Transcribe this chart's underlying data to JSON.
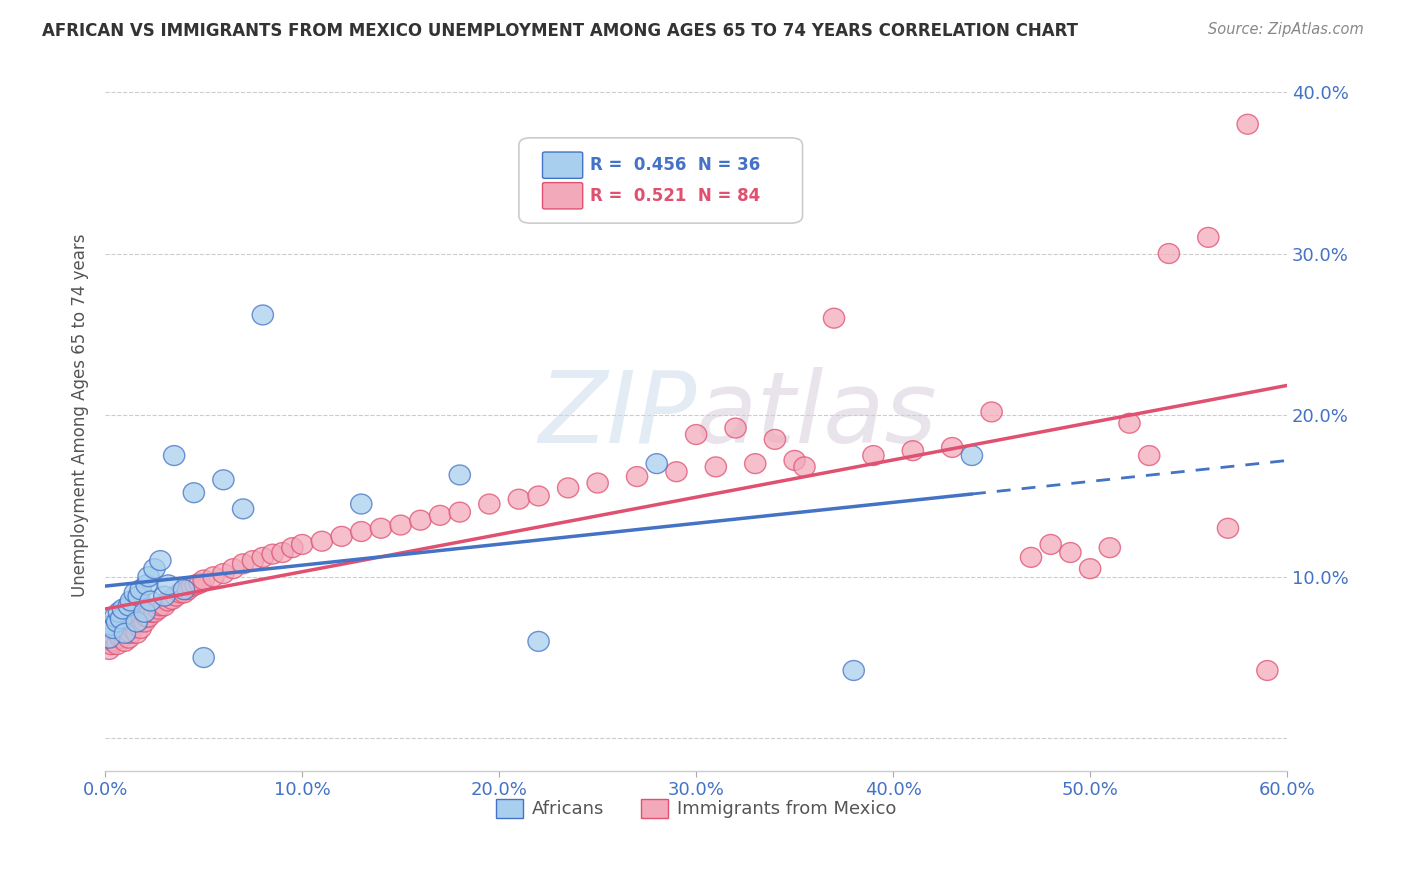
{
  "title": "AFRICAN VS IMMIGRANTS FROM MEXICO UNEMPLOYMENT AMONG AGES 65 TO 74 YEARS CORRELATION CHART",
  "source": "Source: ZipAtlas.com",
  "ylabel": "Unemployment Among Ages 65 to 74 years",
  "legend_africans": "Africans",
  "legend_mexico": "Immigrants from Mexico",
  "r_africans": 0.456,
  "n_africans": 36,
  "r_mexico": 0.521,
  "n_mexico": 84,
  "color_africans": "#A8CFEE",
  "color_mexico": "#F2AABB",
  "color_line_africans": "#4472C4",
  "color_line_mexico": "#E05070",
  "xlim": [
    0.0,
    0.6
  ],
  "ylim": [
    -0.02,
    0.42
  ],
  "watermark_zip": "ZIP",
  "watermark_atlas": "atlas",
  "background": "#FFFFFF",
  "africans_x": [
    0.002,
    0.003,
    0.004,
    0.005,
    0.006,
    0.007,
    0.008,
    0.009,
    0.01,
    0.012,
    0.013,
    0.015,
    0.016,
    0.017,
    0.018,
    0.02,
    0.021,
    0.022,
    0.023,
    0.025,
    0.028,
    0.03,
    0.032,
    0.035,
    0.04,
    0.045,
    0.05,
    0.06,
    0.07,
    0.08,
    0.13,
    0.18,
    0.22,
    0.28,
    0.38,
    0.44
  ],
  "africans_y": [
    0.062,
    0.07,
    0.068,
    0.075,
    0.072,
    0.078,
    0.074,
    0.08,
    0.065,
    0.082,
    0.085,
    0.09,
    0.072,
    0.088,
    0.092,
    0.078,
    0.095,
    0.1,
    0.085,
    0.105,
    0.11,
    0.088,
    0.095,
    0.175,
    0.092,
    0.152,
    0.05,
    0.16,
    0.142,
    0.262,
    0.145,
    0.163,
    0.06,
    0.17,
    0.042,
    0.175
  ],
  "mexico_x": [
    0.002,
    0.003,
    0.004,
    0.005,
    0.006,
    0.007,
    0.008,
    0.009,
    0.01,
    0.011,
    0.012,
    0.013,
    0.014,
    0.015,
    0.016,
    0.017,
    0.018,
    0.02,
    0.021,
    0.022,
    0.023,
    0.025,
    0.027,
    0.028,
    0.03,
    0.032,
    0.034,
    0.036,
    0.038,
    0.04,
    0.042,
    0.044,
    0.046,
    0.048,
    0.05,
    0.055,
    0.06,
    0.065,
    0.07,
    0.075,
    0.08,
    0.085,
    0.09,
    0.095,
    0.1,
    0.11,
    0.12,
    0.13,
    0.14,
    0.15,
    0.16,
    0.17,
    0.18,
    0.195,
    0.21,
    0.22,
    0.235,
    0.25,
    0.27,
    0.29,
    0.31,
    0.33,
    0.35,
    0.37,
    0.39,
    0.41,
    0.43,
    0.45,
    0.48,
    0.5,
    0.52,
    0.54,
    0.56,
    0.57,
    0.58,
    0.59,
    0.3,
    0.32,
    0.34,
    0.355,
    0.47,
    0.49,
    0.51,
    0.53
  ],
  "mexico_y": [
    0.055,
    0.058,
    0.06,
    0.062,
    0.058,
    0.065,
    0.062,
    0.068,
    0.06,
    0.07,
    0.062,
    0.065,
    0.068,
    0.07,
    0.065,
    0.072,
    0.068,
    0.072,
    0.075,
    0.075,
    0.078,
    0.078,
    0.08,
    0.082,
    0.082,
    0.085,
    0.086,
    0.088,
    0.09,
    0.09,
    0.092,
    0.094,
    0.095,
    0.096,
    0.098,
    0.1,
    0.102,
    0.105,
    0.108,
    0.11,
    0.112,
    0.114,
    0.115,
    0.118,
    0.12,
    0.122,
    0.125,
    0.128,
    0.13,
    0.132,
    0.135,
    0.138,
    0.14,
    0.145,
    0.148,
    0.15,
    0.155,
    0.158,
    0.162,
    0.165,
    0.168,
    0.17,
    0.172,
    0.26,
    0.175,
    0.178,
    0.18,
    0.202,
    0.12,
    0.105,
    0.195,
    0.3,
    0.31,
    0.13,
    0.38,
    0.042,
    0.188,
    0.192,
    0.185,
    0.168,
    0.112,
    0.115,
    0.118,
    0.175
  ]
}
